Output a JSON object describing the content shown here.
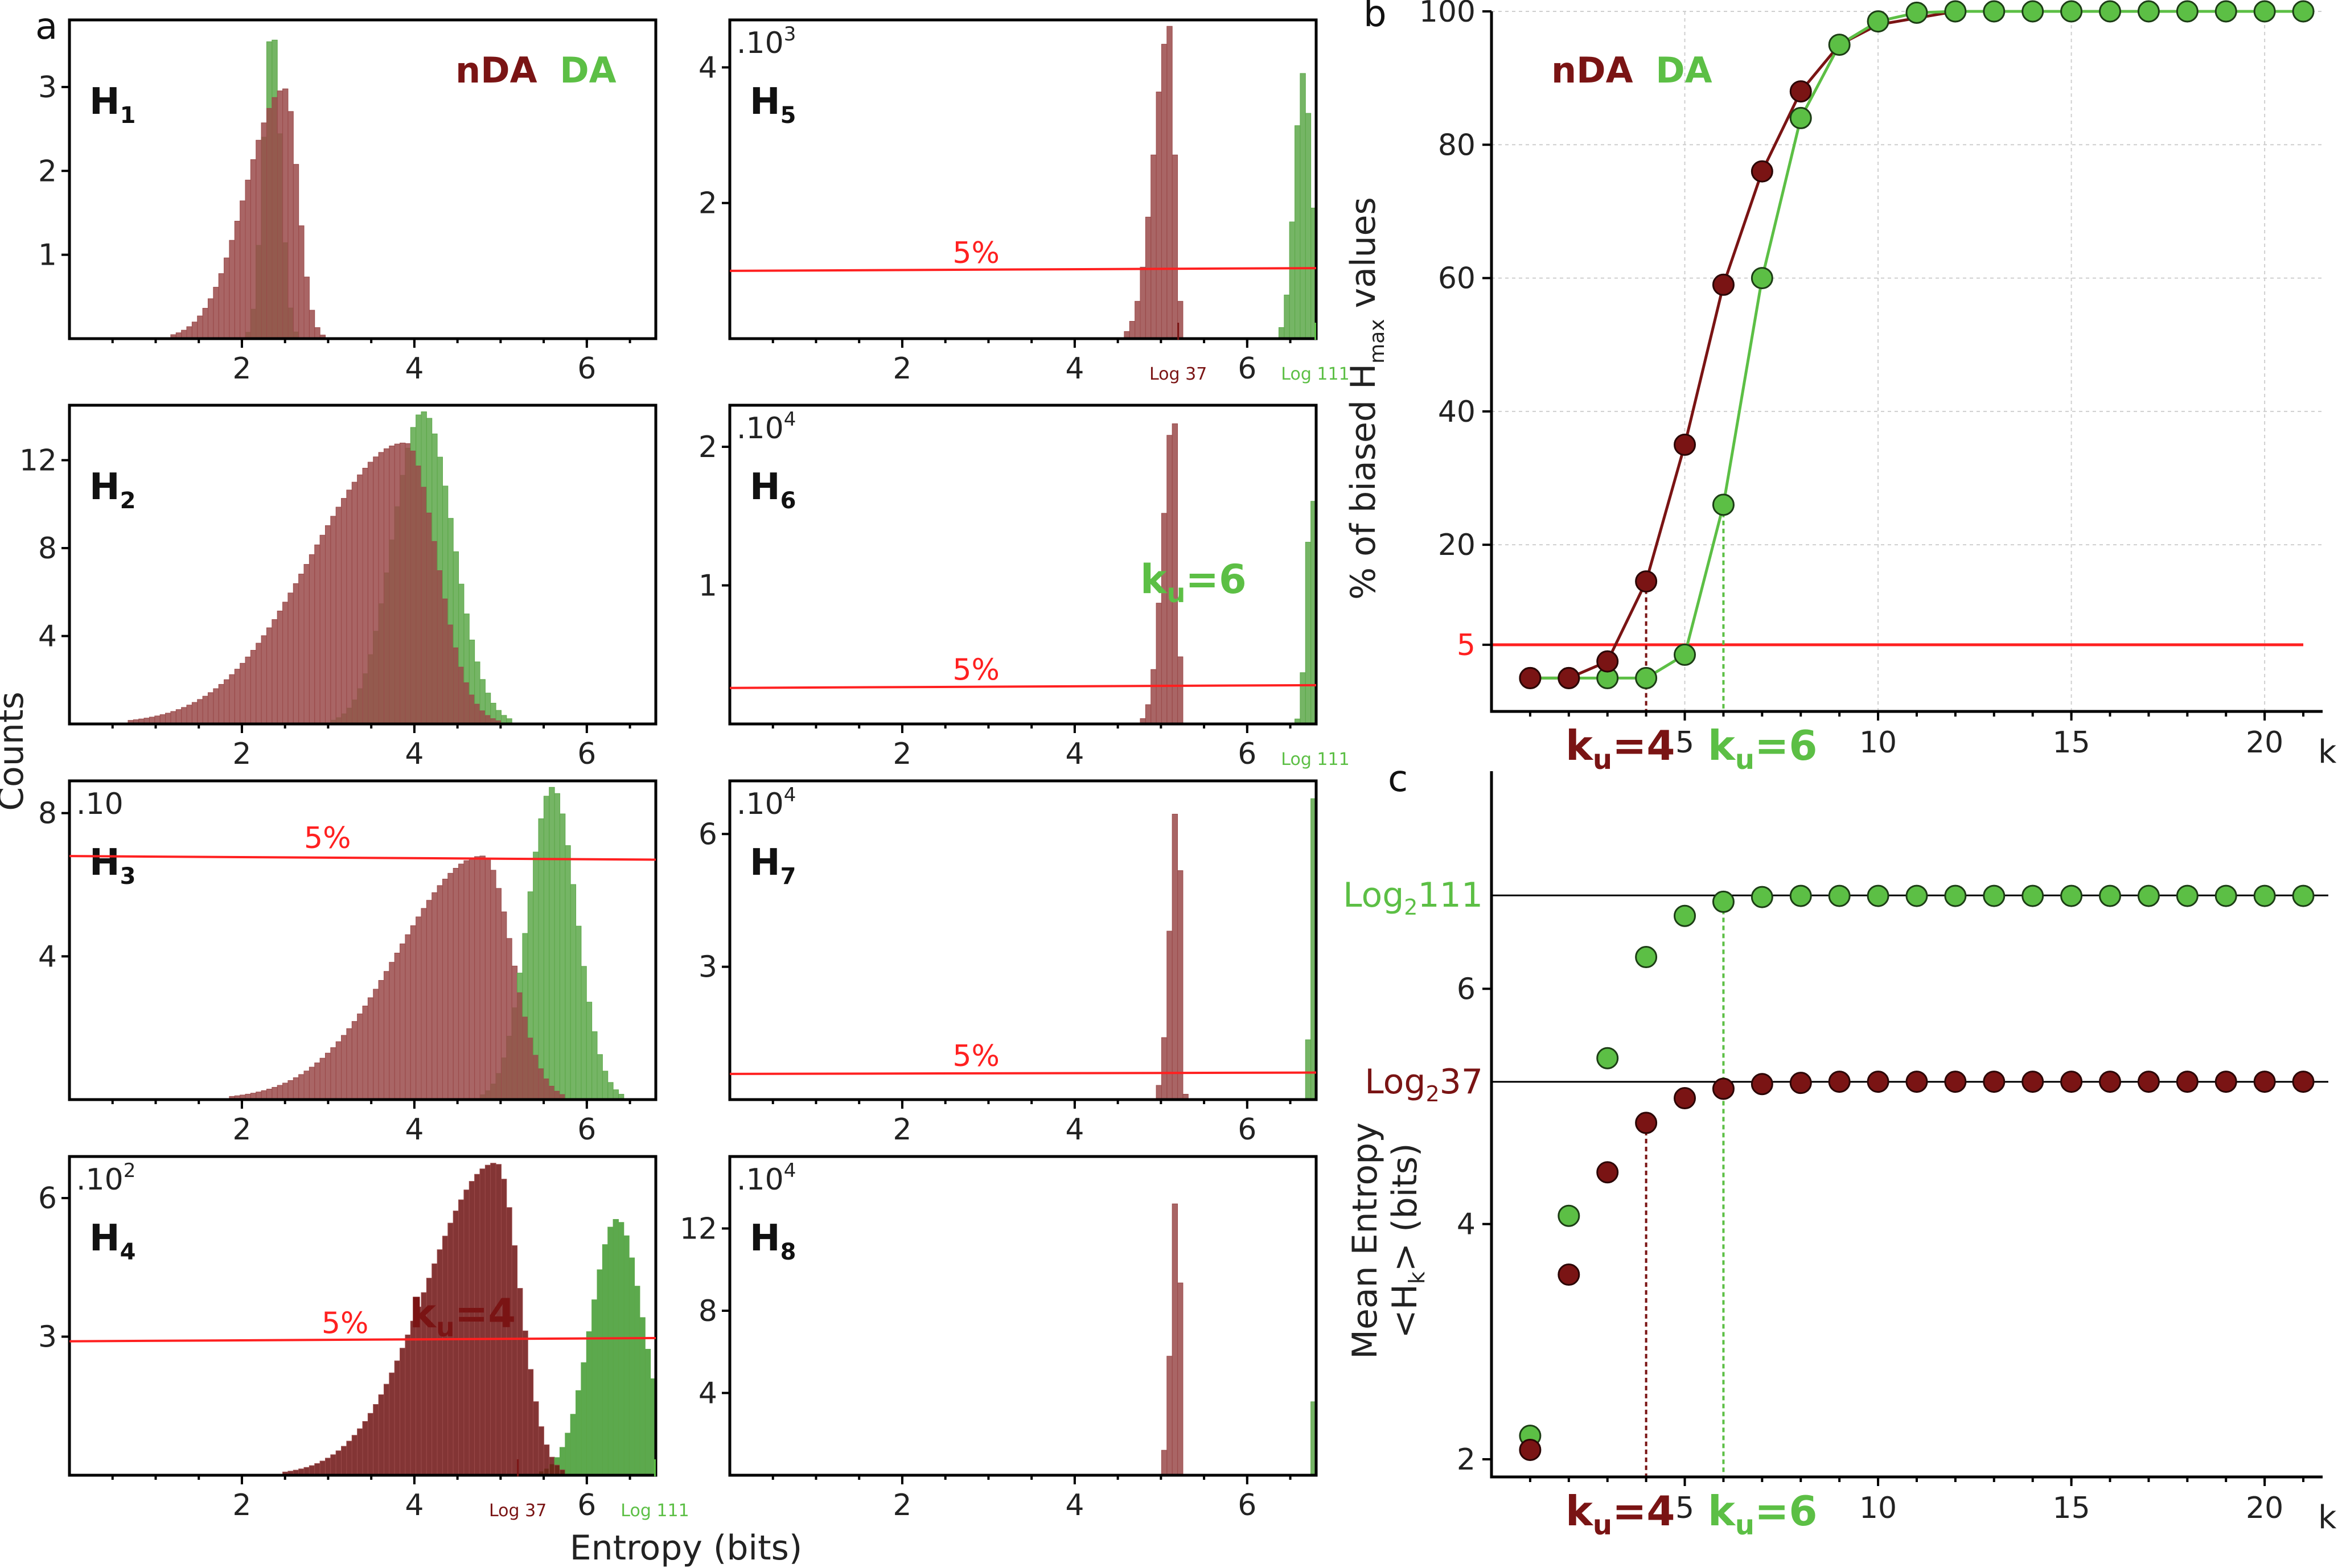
{
  "colors": {
    "nDA": "#7a1414",
    "DA": "#5cbf45",
    "nDA_hist": "#9a4a4a",
    "DA_hist": "#5da84a",
    "threshold": "#ff2020"
  },
  "panel_letters": {
    "a": "a",
    "b": "b",
    "c": "c"
  },
  "legend": {
    "nDA": "nDA",
    "DA": "DA"
  },
  "labels": {
    "counts": "Counts",
    "entropy_bits": "Entropy (bits)",
    "biased_y_prefix": "% of biased H",
    "biased_y_sub": "max",
    "biased_y_suffix": " values",
    "mean_entropy_line1": "Mean Entropy",
    "mean_entropy_line2": "<H",
    "mean_entropy_sub": "k",
    "mean_entropy_line2_suffix": "> (bits)",
    "k": "k",
    "five_pct": "5%",
    "log37_small": "Log 37",
    "log111_small": "Log 111",
    "log2_111": "Log",
    "log2_111_sub": "2",
    "log2_111_num": "111",
    "log2_37_num": "37",
    "ku_prefix": "k",
    "ku_sub": "u",
    "ku4_value": "=4",
    "ku6_value": "=6"
  },
  "histograms": [
    {
      "id": "H1",
      "name": "H",
      "sub": "1",
      "scale": "",
      "yticks": [
        "1",
        "2",
        "3"
      ],
      "xticks": [
        "2",
        "4",
        "6"
      ]
    },
    {
      "id": "H2",
      "name": "H",
      "sub": "2",
      "scale": "",
      "yticks": [
        "4",
        "8",
        "12"
      ],
      "xticks": [
        "2",
        "4",
        "6"
      ]
    },
    {
      "id": "H3",
      "name": "H",
      "sub": "3",
      "scale": ".10",
      "yticks": [
        "4",
        "8"
      ],
      "xticks": [
        "2",
        "4",
        "6"
      ]
    },
    {
      "id": "H4",
      "name": "H",
      "sub": "4",
      "scale": ".10",
      "scale_exp": "2",
      "yticks": [
        "3",
        "6"
      ],
      "xticks": [
        "2",
        "4",
        "6"
      ]
    },
    {
      "id": "H5",
      "name": "H",
      "sub": "5",
      "scale": ".10",
      "scale_exp": "3",
      "yticks": [
        "2",
        "4"
      ],
      "xticks": [
        "2",
        "4",
        "6"
      ]
    },
    {
      "id": "H6",
      "name": "H",
      "sub": "6",
      "scale": ".10",
      "scale_exp": "4",
      "yticks": [
        "1",
        "2"
      ],
      "xticks": [
        "2",
        "4",
        "6"
      ]
    },
    {
      "id": "H7",
      "name": "H",
      "sub": "7",
      "scale": ".10",
      "scale_exp": "4",
      "yticks": [
        "3",
        "6"
      ],
      "xticks": [
        "2",
        "4",
        "6"
      ]
    },
    {
      "id": "H8",
      "name": "H",
      "sub": "8",
      "scale": ".10",
      "scale_exp": "4",
      "yticks": [
        "4",
        "8",
        "12"
      ],
      "xticks": [
        "2",
        "4",
        "6"
      ]
    }
  ],
  "chart_data": [
    {
      "type": "line",
      "panel": "b",
      "xlabel": "k",
      "ylabel": "% of biased Hmax values",
      "xlim": [
        0,
        21.5
      ],
      "ylim": [
        -5,
        100
      ],
      "x_ticks": [
        5,
        10,
        15,
        20
      ],
      "y_ticks": [
        5,
        20,
        40,
        60,
        80,
        100
      ],
      "grid": true,
      "threshold": 5,
      "series": [
        {
          "name": "nDA",
          "x": [
            1,
            2,
            3,
            4,
            5,
            6,
            7,
            8,
            9,
            10,
            11,
            12,
            13,
            14,
            15,
            16,
            17,
            18,
            19,
            20,
            21
          ],
          "values": [
            0,
            0,
            2.5,
            14.5,
            35,
            59,
            76,
            88,
            95,
            98,
            99,
            100,
            100,
            100,
            100,
            100,
            100,
            100,
            100,
            100,
            100
          ]
        },
        {
          "name": "DA",
          "x": [
            1,
            2,
            3,
            4,
            5,
            6,
            7,
            8,
            9,
            10,
            11,
            12,
            13,
            14,
            15,
            16,
            17,
            18,
            19,
            20,
            21
          ],
          "values": [
            0,
            0,
            0,
            0,
            3.5,
            26,
            60,
            84,
            95,
            98.5,
            99.8,
            100,
            100,
            100,
            100,
            100,
            100,
            100,
            100,
            100,
            100
          ]
        }
      ],
      "annotations": [
        "ku=4",
        "ku=6"
      ]
    },
    {
      "type": "scatter",
      "panel": "c",
      "xlabel": "k",
      "ylabel": "Mean Entropy <Hk> (bits)",
      "xlim": [
        0,
        21.5
      ],
      "ylim": [
        1.85,
        7.85
      ],
      "x_ticks": [
        5,
        10,
        15,
        20
      ],
      "y_ticks": [
        2,
        4,
        6
      ],
      "reference_lines": [
        {
          "label": "Log2 111",
          "value": 6.794
        },
        {
          "label": "Log2 37",
          "value": 5.209
        }
      ],
      "series": [
        {
          "name": "nDA",
          "x": [
            1,
            2,
            3,
            4,
            5,
            6,
            7,
            8,
            9,
            10,
            11,
            12,
            13,
            14,
            15,
            16,
            17,
            18,
            19,
            20,
            21
          ],
          "values": [
            2.08,
            3.57,
            4.44,
            4.86,
            5.07,
            5.15,
            5.19,
            5.2,
            5.21,
            5.21,
            5.21,
            5.21,
            5.21,
            5.21,
            5.21,
            5.21,
            5.21,
            5.21,
            5.21,
            5.21,
            5.21
          ]
        },
        {
          "name": "DA",
          "x": [
            1,
            2,
            3,
            4,
            5,
            6,
            7,
            8,
            9,
            10,
            11,
            12,
            13,
            14,
            15,
            16,
            17,
            18,
            19,
            20,
            21
          ],
          "values": [
            2.2,
            4.07,
            5.41,
            6.27,
            6.62,
            6.74,
            6.78,
            6.79,
            6.79,
            6.79,
            6.79,
            6.79,
            6.79,
            6.79,
            6.79,
            6.79,
            6.79,
            6.79,
            6.79,
            6.79,
            6.79
          ]
        }
      ]
    }
  ]
}
